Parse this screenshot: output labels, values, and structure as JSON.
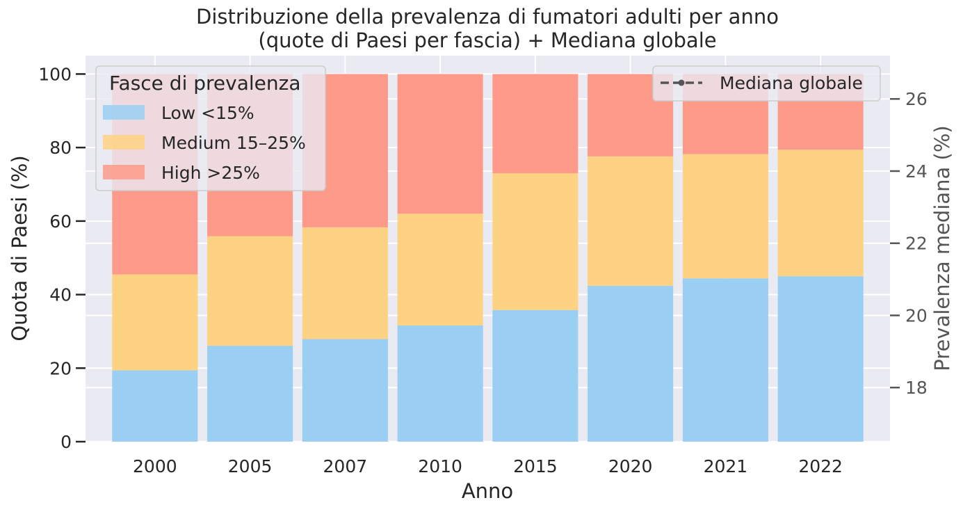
{
  "chart_data": {
    "type": "bar",
    "stacked": true,
    "title_line1": "Distribuzione della prevalenza di fumatori adulti per anno",
    "title_line2": "(quote di Paesi per fascia) + Mediana globale",
    "xlabel": "Anno",
    "ylabel": "Quota di Paesi (%)",
    "y2label": "Prevalenza mediana (%)",
    "categories": [
      "2000",
      "2005",
      "2007",
      "2010",
      "2015",
      "2020",
      "2021",
      "2022"
    ],
    "ylim": [
      0,
      105
    ],
    "y2lim": [
      16.5,
      27.2
    ],
    "yticks": [
      0,
      20,
      40,
      60,
      80,
      100
    ],
    "y2ticks": [
      18,
      20,
      22,
      24,
      26
    ],
    "grid": true,
    "series": [
      {
        "name": "Low <15%",
        "color": "#9ACFF3",
        "values": [
          19.4,
          26.1,
          27.9,
          31.6,
          35.8,
          42.4,
          44.4,
          45.0
        ]
      },
      {
        "name": "Medium 15–25%",
        "color": "#FED283",
        "values": [
          26.1,
          29.8,
          30.4,
          30.4,
          37.2,
          35.2,
          33.8,
          34.4
        ]
      },
      {
        "name": "High >25%",
        "color": "#FE9A8A",
        "values": [
          54.5,
          44.1,
          41.7,
          38.0,
          27.0,
          22.4,
          21.8,
          20.6
        ]
      }
    ],
    "legend": {
      "title": "Fasce di prevalenza",
      "placement": "top-left"
    },
    "line_legend": {
      "label": "Mediana globale",
      "placement": "top-right"
    }
  }
}
